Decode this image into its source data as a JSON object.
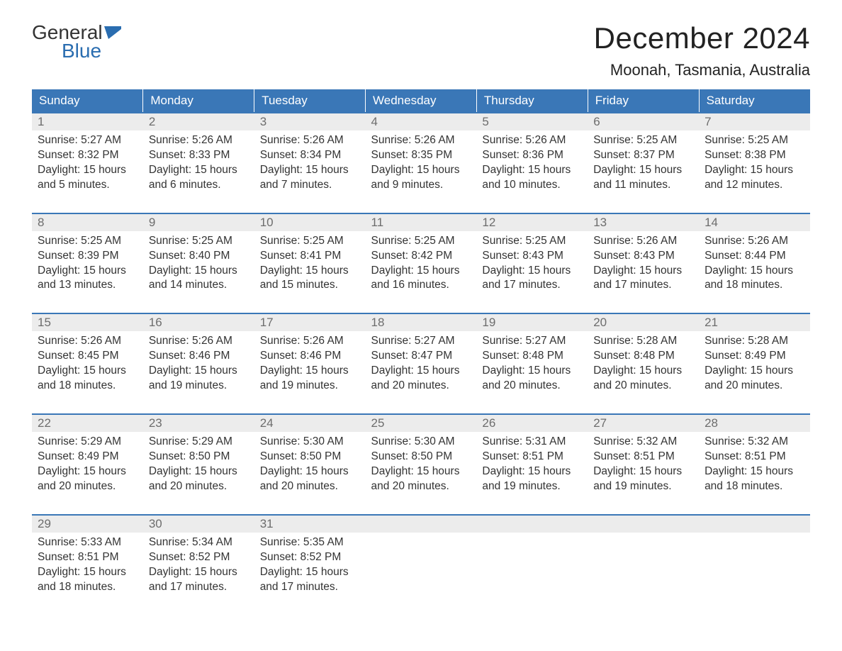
{
  "logo": {
    "text1": "General",
    "text2": "Blue",
    "flag_color": "#2a6db0"
  },
  "title": "December 2024",
  "location": "Moonah, Tasmania, Australia",
  "colors": {
    "header_bg": "#3a77b7",
    "header_text": "#ffffff",
    "daynum_bg": "#ececec",
    "daynum_text": "#6d6d6d",
    "body_text": "#333333",
    "rule": "#3a77b7",
    "page_bg": "#ffffff"
  },
  "day_labels": [
    "Sunday",
    "Monday",
    "Tuesday",
    "Wednesday",
    "Thursday",
    "Friday",
    "Saturday"
  ],
  "weeks": [
    [
      {
        "n": "1",
        "sr": "5:27 AM",
        "ss": "8:32 PM",
        "dl": "15 hours and 5 minutes."
      },
      {
        "n": "2",
        "sr": "5:26 AM",
        "ss": "8:33 PM",
        "dl": "15 hours and 6 minutes."
      },
      {
        "n": "3",
        "sr": "5:26 AM",
        "ss": "8:34 PM",
        "dl": "15 hours and 7 minutes."
      },
      {
        "n": "4",
        "sr": "5:26 AM",
        "ss": "8:35 PM",
        "dl": "15 hours and 9 minutes."
      },
      {
        "n": "5",
        "sr": "5:26 AM",
        "ss": "8:36 PM",
        "dl": "15 hours and 10 minutes."
      },
      {
        "n": "6",
        "sr": "5:25 AM",
        "ss": "8:37 PM",
        "dl": "15 hours and 11 minutes."
      },
      {
        "n": "7",
        "sr": "5:25 AM",
        "ss": "8:38 PM",
        "dl": "15 hours and 12 minutes."
      }
    ],
    [
      {
        "n": "8",
        "sr": "5:25 AM",
        "ss": "8:39 PM",
        "dl": "15 hours and 13 minutes."
      },
      {
        "n": "9",
        "sr": "5:25 AM",
        "ss": "8:40 PM",
        "dl": "15 hours and 14 minutes."
      },
      {
        "n": "10",
        "sr": "5:25 AM",
        "ss": "8:41 PM",
        "dl": "15 hours and 15 minutes."
      },
      {
        "n": "11",
        "sr": "5:25 AM",
        "ss": "8:42 PM",
        "dl": "15 hours and 16 minutes."
      },
      {
        "n": "12",
        "sr": "5:25 AM",
        "ss": "8:43 PM",
        "dl": "15 hours and 17 minutes."
      },
      {
        "n": "13",
        "sr": "5:26 AM",
        "ss": "8:43 PM",
        "dl": "15 hours and 17 minutes."
      },
      {
        "n": "14",
        "sr": "5:26 AM",
        "ss": "8:44 PM",
        "dl": "15 hours and 18 minutes."
      }
    ],
    [
      {
        "n": "15",
        "sr": "5:26 AM",
        "ss": "8:45 PM",
        "dl": "15 hours and 18 minutes."
      },
      {
        "n": "16",
        "sr": "5:26 AM",
        "ss": "8:46 PM",
        "dl": "15 hours and 19 minutes."
      },
      {
        "n": "17",
        "sr": "5:26 AM",
        "ss": "8:46 PM",
        "dl": "15 hours and 19 minutes."
      },
      {
        "n": "18",
        "sr": "5:27 AM",
        "ss": "8:47 PM",
        "dl": "15 hours and 20 minutes."
      },
      {
        "n": "19",
        "sr": "5:27 AM",
        "ss": "8:48 PM",
        "dl": "15 hours and 20 minutes."
      },
      {
        "n": "20",
        "sr": "5:28 AM",
        "ss": "8:48 PM",
        "dl": "15 hours and 20 minutes."
      },
      {
        "n": "21",
        "sr": "5:28 AM",
        "ss": "8:49 PM",
        "dl": "15 hours and 20 minutes."
      }
    ],
    [
      {
        "n": "22",
        "sr": "5:29 AM",
        "ss": "8:49 PM",
        "dl": "15 hours and 20 minutes."
      },
      {
        "n": "23",
        "sr": "5:29 AM",
        "ss": "8:50 PM",
        "dl": "15 hours and 20 minutes."
      },
      {
        "n": "24",
        "sr": "5:30 AM",
        "ss": "8:50 PM",
        "dl": "15 hours and 20 minutes."
      },
      {
        "n": "25",
        "sr": "5:30 AM",
        "ss": "8:50 PM",
        "dl": "15 hours and 20 minutes."
      },
      {
        "n": "26",
        "sr": "5:31 AM",
        "ss": "8:51 PM",
        "dl": "15 hours and 19 minutes."
      },
      {
        "n": "27",
        "sr": "5:32 AM",
        "ss": "8:51 PM",
        "dl": "15 hours and 19 minutes."
      },
      {
        "n": "28",
        "sr": "5:32 AM",
        "ss": "8:51 PM",
        "dl": "15 hours and 18 minutes."
      }
    ],
    [
      {
        "n": "29",
        "sr": "5:33 AM",
        "ss": "8:51 PM",
        "dl": "15 hours and 18 minutes."
      },
      {
        "n": "30",
        "sr": "5:34 AM",
        "ss": "8:52 PM",
        "dl": "15 hours and 17 minutes."
      },
      {
        "n": "31",
        "sr": "5:35 AM",
        "ss": "8:52 PM",
        "dl": "15 hours and 17 minutes."
      },
      null,
      null,
      null,
      null
    ]
  ],
  "labels": {
    "sunrise": "Sunrise:",
    "sunset": "Sunset:",
    "daylight": "Daylight:"
  }
}
